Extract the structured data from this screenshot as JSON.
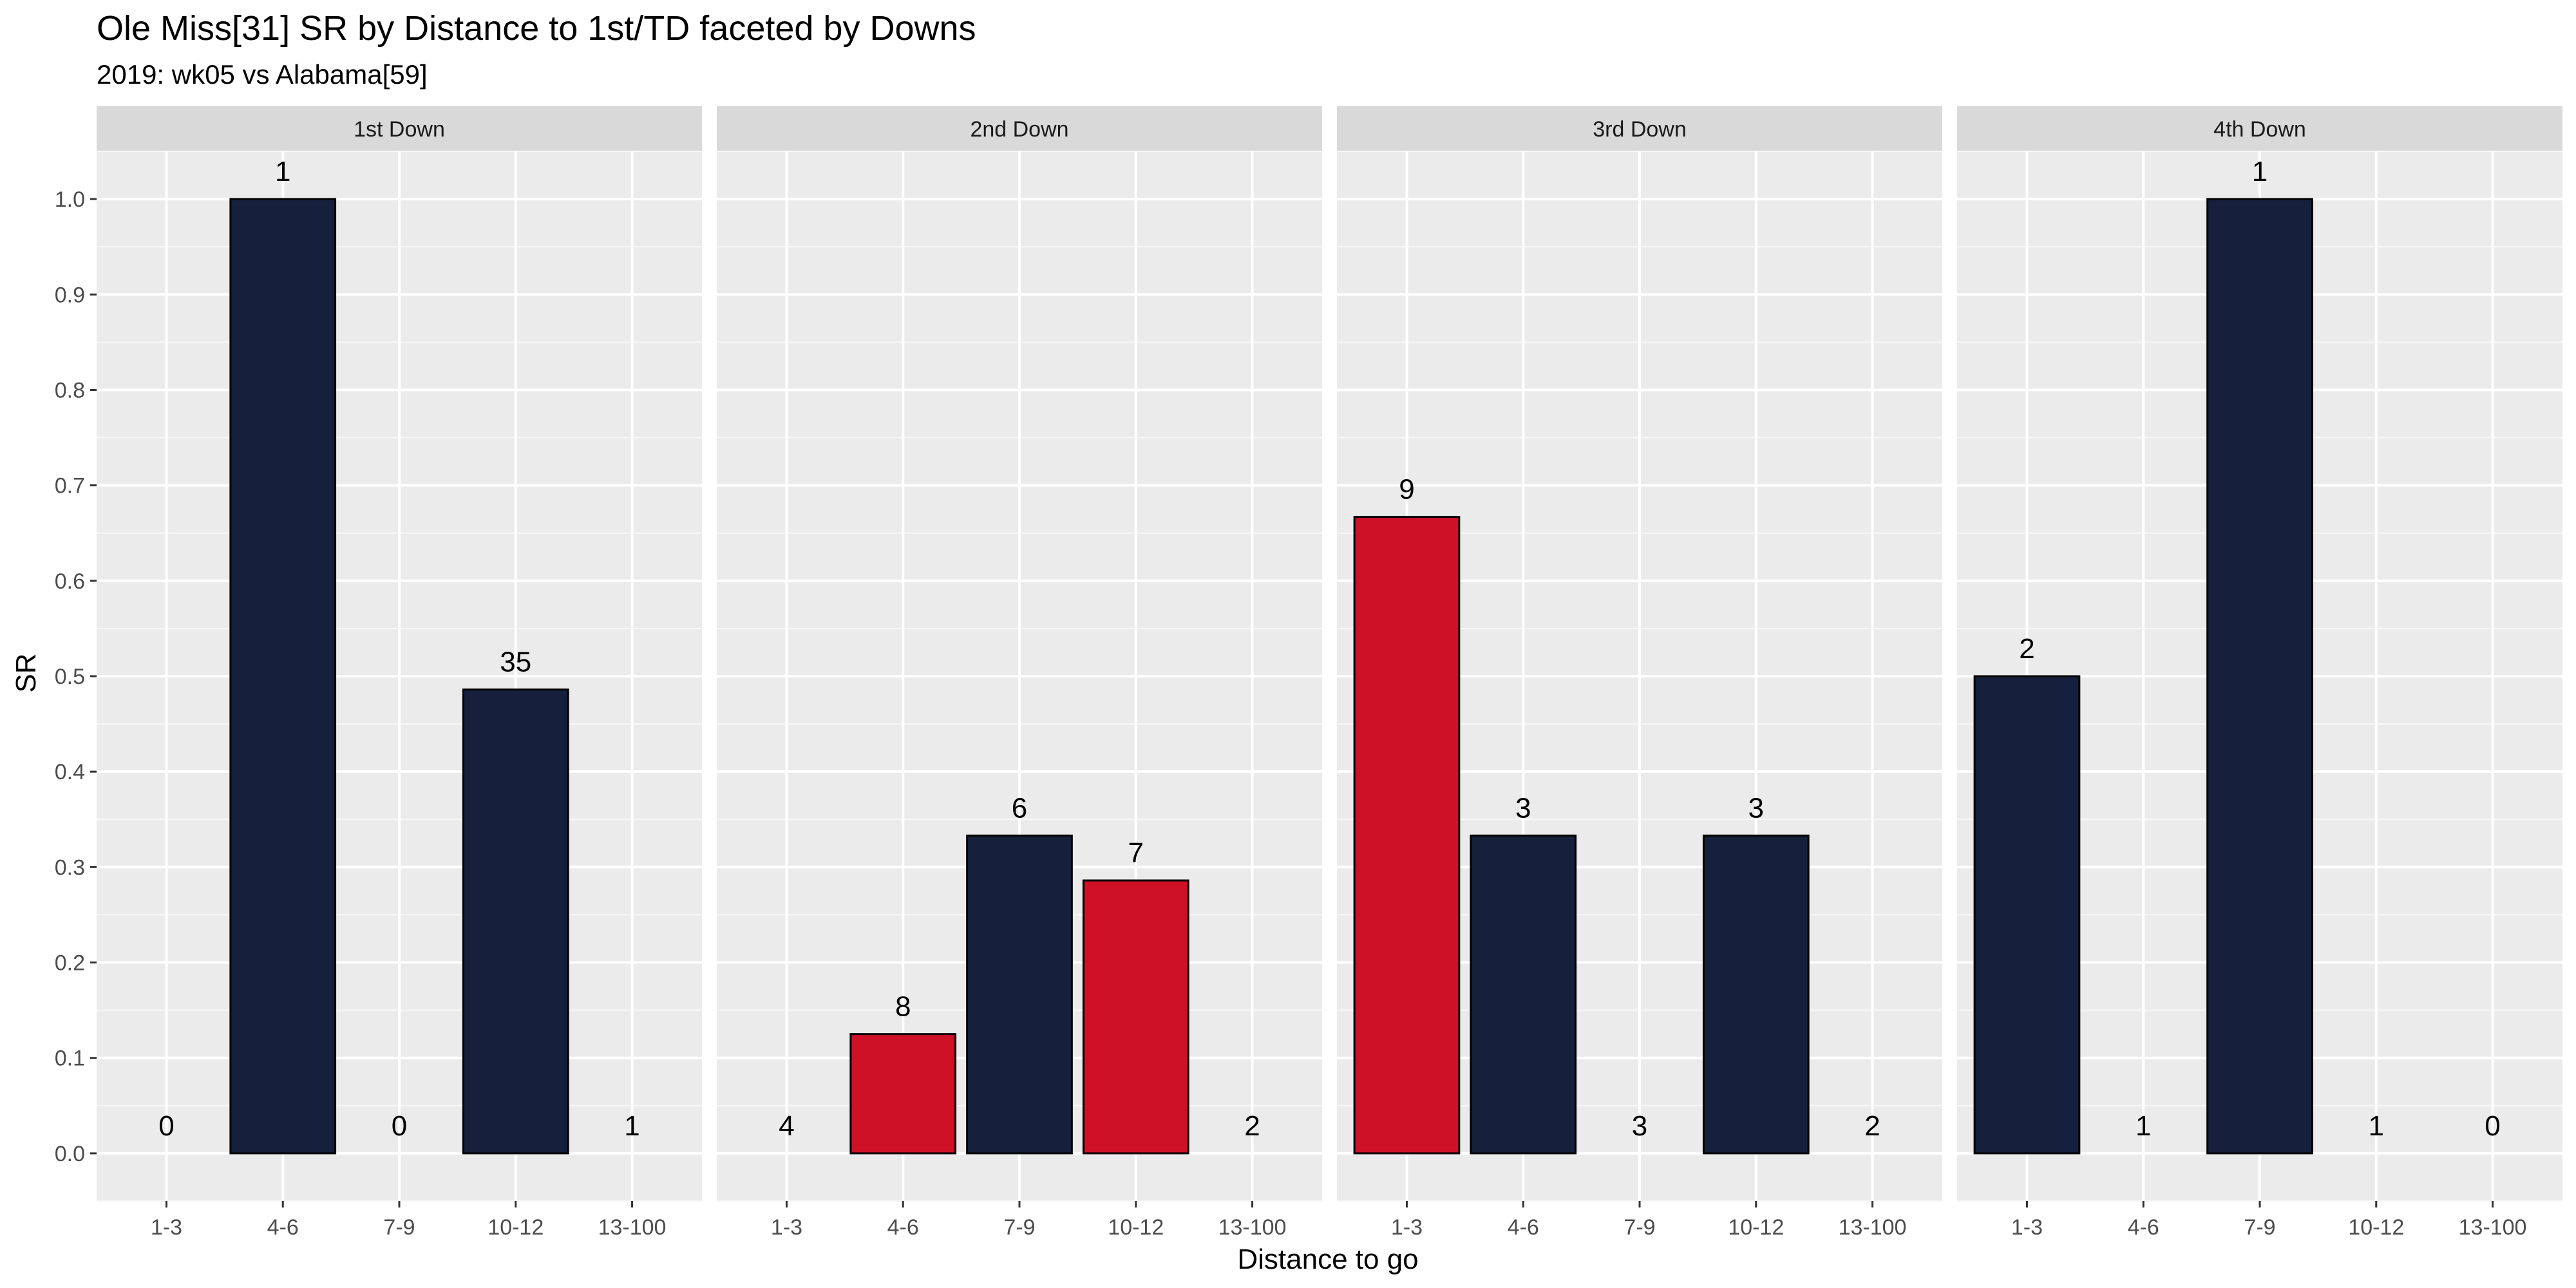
{
  "chart_data": {
    "type": "bar",
    "title": "Ole Miss[31] SR by Distance to 1st/TD faceted by Downs",
    "subtitle": "2019: wk05 vs Alabama[59]",
    "xlabel": "Distance to go",
    "ylabel": "SR",
    "ylim": [
      -0.05,
      1.05
    ],
    "yticks": [
      0.0,
      0.1,
      0.2,
      0.3,
      0.4,
      0.5,
      0.6,
      0.7,
      0.8,
      0.9,
      1.0
    ],
    "ytick_labels": [
      "0.0",
      "0.1",
      "0.2",
      "0.3",
      "0.4",
      "0.5",
      "0.6",
      "0.7",
      "0.8",
      "0.9",
      "1.0"
    ],
    "categories": [
      "1-3",
      "4-6",
      "7-9",
      "10-12",
      "13-100"
    ],
    "grid": true,
    "colors": {
      "navy": "#15203c",
      "red": "#ce1126"
    },
    "facets": [
      {
        "label": "1st Down",
        "values": [
          0.0,
          1.0,
          0.0,
          0.486,
          0.0
        ],
        "counts": [
          "0",
          "1",
          "0",
          "35",
          "1"
        ],
        "fills": [
          "navy",
          "navy",
          "navy",
          "navy",
          "navy"
        ]
      },
      {
        "label": "2nd Down",
        "values": [
          0.0,
          0.125,
          0.333,
          0.286,
          0.0
        ],
        "counts": [
          "4",
          "8",
          "6",
          "7",
          "2"
        ],
        "fills": [
          "navy",
          "red",
          "navy",
          "red",
          "navy"
        ]
      },
      {
        "label": "3rd Down",
        "values": [
          0.667,
          0.333,
          0.0,
          0.333,
          0.0
        ],
        "counts": [
          "9",
          "3",
          "3",
          "3",
          "2"
        ],
        "fills": [
          "red",
          "navy",
          "navy",
          "navy",
          "navy"
        ]
      },
      {
        "label": "4th Down",
        "values": [
          0.5,
          0.0,
          1.0,
          0.0,
          0.0
        ],
        "counts": [
          "2",
          "1",
          "1",
          "1",
          "0"
        ],
        "fills": [
          "navy",
          "navy",
          "navy",
          "navy",
          "navy"
        ]
      }
    ]
  }
}
